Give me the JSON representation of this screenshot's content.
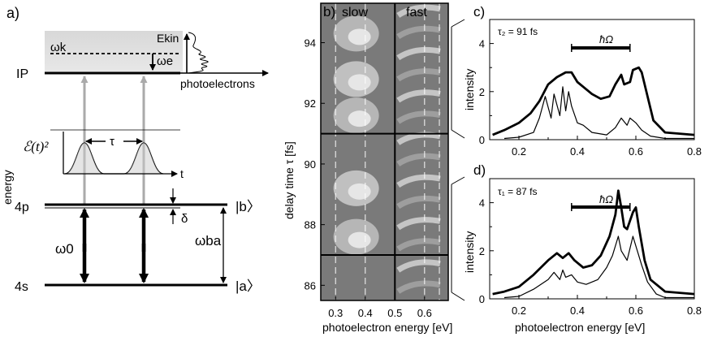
{
  "panel_a": {
    "label": "a)",
    "level_ip": "IP",
    "level_4p": "4p",
    "level_4s": "4s",
    "energy_axis": "energy",
    "omega_k": "ωk",
    "omega_e": "ωe",
    "e_kin": "Ekin",
    "photoelectrons": "photoelectrons",
    "envelope": "ℰ(t)²",
    "tau": "τ",
    "t": "t",
    "delta": "δ",
    "omega_0": "ω0",
    "omega_ba": "ωba",
    "ket_b": "|b〉",
    "ket_a": "|a〉"
  },
  "panel_b": {
    "label": "b)",
    "slow": "slow",
    "fast": "fast",
    "ylabel": "delay time τ [fs]",
    "xlabel": "photoelectron energy [eV]",
    "yticks": [
      "86",
      "88",
      "90",
      "92",
      "94"
    ],
    "xticks": [
      "0.3",
      "0.4",
      "0.5",
      "0.6"
    ]
  },
  "panel_c": {
    "label": "c)",
    "tau_label": "τ₂ = 91 fs",
    "hbar_omega": "ħΩ",
    "ylabel": "intensity"
  },
  "panel_d": {
    "label": "d)",
    "tau_label": "τ₁ = 87 fs",
    "hbar_omega": "ħΩ",
    "ylabel": "intensity",
    "xlabel": "photoelectron energy [eV]"
  },
  "chart_data": [
    {
      "type": "line",
      "panel": "c",
      "xlabel": "",
      "ylabel": "intensity",
      "xlim": [
        0.1,
        0.8
      ],
      "ylim": [
        0,
        5
      ],
      "xticks": [
        "0.2",
        "0.4",
        "0.6",
        "0.8"
      ],
      "yticks": [
        "0",
        "2",
        "4"
      ],
      "series": [
        {
          "style": "thick",
          "x": [
            0.11,
            0.15,
            0.2,
            0.24,
            0.27,
            0.3,
            0.33,
            0.36,
            0.38,
            0.4,
            0.42,
            0.45,
            0.48,
            0.51,
            0.53,
            0.55,
            0.56,
            0.58,
            0.59,
            0.61,
            0.62,
            0.64,
            0.66,
            0.7,
            0.75,
            0.8
          ],
          "y": [
            0.2,
            0.4,
            0.7,
            1.1,
            1.6,
            2.3,
            2.6,
            2.8,
            2.8,
            2.4,
            2.2,
            1.9,
            1.7,
            1.8,
            2.3,
            2.7,
            2.3,
            2.4,
            2.9,
            3.0,
            2.8,
            1.8,
            0.8,
            0.3,
            0.25,
            0.2
          ]
        },
        {
          "style": "thin",
          "x": [
            0.15,
            0.2,
            0.25,
            0.27,
            0.29,
            0.31,
            0.32,
            0.34,
            0.35,
            0.36,
            0.37,
            0.38,
            0.4,
            0.42,
            0.45,
            0.5,
            0.53,
            0.55,
            0.57,
            0.58,
            0.6,
            0.62,
            0.65,
            0.7,
            0.8
          ],
          "y": [
            0.05,
            0.1,
            0.3,
            0.9,
            1.8,
            0.9,
            1.9,
            1.0,
            2.2,
            1.2,
            2.0,
            1.4,
            0.7,
            0.6,
            0.3,
            0.2,
            0.5,
            0.9,
            0.6,
            0.9,
            0.7,
            0.4,
            0.15,
            0.05,
            0.05
          ]
        }
      ]
    },
    {
      "type": "line",
      "panel": "d",
      "xlabel": "photoelectron energy [eV]",
      "ylabel": "intensity",
      "xlim": [
        0.1,
        0.8
      ],
      "ylim": [
        0,
        5
      ],
      "xticks": [
        "0.2",
        "0.4",
        "0.6",
        "0.8"
      ],
      "yticks": [
        "0",
        "2",
        "4"
      ],
      "series": [
        {
          "style": "thick",
          "x": [
            0.11,
            0.15,
            0.2,
            0.25,
            0.3,
            0.33,
            0.35,
            0.37,
            0.39,
            0.42,
            0.45,
            0.48,
            0.51,
            0.53,
            0.54,
            0.55,
            0.56,
            0.57,
            0.59,
            0.6,
            0.61,
            0.63,
            0.65,
            0.7,
            0.75,
            0.8
          ],
          "y": [
            0.2,
            0.3,
            0.5,
            1.0,
            1.6,
            1.9,
            1.7,
            1.9,
            1.6,
            1.3,
            1.4,
            1.8,
            2.6,
            3.5,
            4.5,
            3.8,
            3.0,
            2.9,
            3.6,
            3.8,
            3.0,
            1.6,
            0.8,
            0.3,
            0.25,
            0.2
          ]
        },
        {
          "style": "thin",
          "x": [
            0.15,
            0.2,
            0.25,
            0.3,
            0.32,
            0.34,
            0.35,
            0.36,
            0.38,
            0.4,
            0.43,
            0.47,
            0.5,
            0.52,
            0.54,
            0.55,
            0.57,
            0.58,
            0.59,
            0.6,
            0.62,
            0.64,
            0.67,
            0.7,
            0.8
          ],
          "y": [
            0.05,
            0.1,
            0.4,
            0.8,
            1.1,
            0.8,
            1.2,
            0.9,
            1.0,
            0.7,
            0.6,
            0.8,
            1.3,
            1.8,
            2.6,
            2.0,
            1.6,
            2.1,
            2.6,
            2.2,
            1.4,
            0.7,
            0.2,
            0.05,
            0.05
          ]
        }
      ]
    },
    {
      "type": "heatmap",
      "panel": "b",
      "xlabel": "photoelectron energy [eV]",
      "ylabel": "delay time τ [fs]",
      "xlim": [
        0.25,
        0.68
      ],
      "ylim": [
        85.5,
        95.3
      ],
      "xticks": [
        "0.3",
        "0.4",
        "0.5",
        "0.6"
      ],
      "yticks": [
        "86",
        "88",
        "90",
        "92",
        "94"
      ],
      "divider_x": 0.5,
      "marked_delays": [
        91,
        87
      ]
    }
  ]
}
